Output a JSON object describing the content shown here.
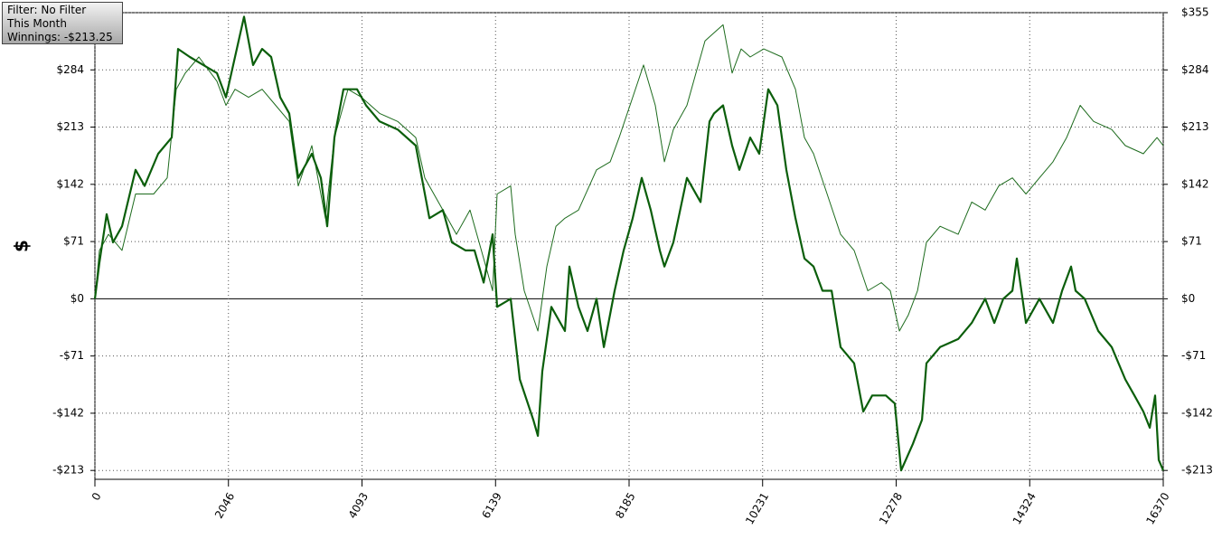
{
  "chart_data": {
    "type": "line",
    "ylabel": "$",
    "annotation_lines": [
      "Filter: No Filter",
      "This Month",
      "Winnings: -$213.25"
    ],
    "xlim": [
      0,
      16370
    ],
    "xticks": [
      0,
      2046,
      4093,
      6139,
      8185,
      10231,
      12278,
      14324,
      16370
    ],
    "ylim": [
      -224,
      355
    ],
    "yticks": [
      {
        "value": -213,
        "label": "-$213"
      },
      {
        "value": -142,
        "label": "-$142"
      },
      {
        "value": -71,
        "label": "-$71"
      },
      {
        "value": 0,
        "label": "$0"
      },
      {
        "value": 71,
        "label": "$71"
      },
      {
        "value": 142,
        "label": "$142"
      },
      {
        "value": 213,
        "label": "$213"
      },
      {
        "value": 284,
        "label": "$284"
      },
      {
        "value": 355,
        "label": "$355"
      }
    ],
    "grid": true,
    "series": [
      {
        "color": "#0b5e0b",
        "width": 2.2,
        "x": [
          0,
          69,
          180,
          277,
          416,
          623,
          762,
          970,
          1177,
          1274,
          1454,
          1662,
          1870,
          2008,
          2147,
          2285,
          2424,
          2562,
          2701,
          2839,
          2978,
          3116,
          3324,
          3463,
          3559,
          3670,
          3809,
          4017,
          4155,
          4363,
          4640,
          4917,
          5125,
          5332,
          5471,
          5679,
          5817,
          5956,
          6094,
          6163,
          6371,
          6510,
          6717,
          6787,
          6856,
          6994,
          7202,
          7271,
          7410,
          7548,
          7687,
          7798,
          7964,
          8102,
          8241,
          8379,
          8518,
          8656,
          8726,
          8864,
          9072,
          9280,
          9418,
          9487,
          9626,
          9764,
          9875,
          10041,
          10180,
          10318,
          10457,
          10595,
          10734,
          10872,
          11011,
          11149,
          11288,
          11426,
          11634,
          11773,
          11911,
          12119,
          12257,
          12354,
          12534,
          12673,
          12742,
          12950,
          13227,
          13435,
          13642,
          13781,
          13919,
          14058,
          14127,
          14266,
          14473,
          14681,
          14820,
          14958,
          15027,
          15166,
          15374,
          15581,
          15789,
          15928,
          16066,
          16163,
          16246,
          16301,
          16370
        ],
        "values": [
          0,
          45,
          105,
          70,
          90,
          160,
          140,
          180,
          200,
          310,
          300,
          290,
          280,
          250,
          300,
          350,
          290,
          310,
          300,
          250,
          230,
          150,
          180,
          150,
          90,
          200,
          260,
          260,
          240,
          220,
          210,
          190,
          100,
          110,
          70,
          60,
          60,
          20,
          80,
          -10,
          0,
          -100,
          -150,
          -170,
          -90,
          -10,
          -40,
          40,
          -10,
          -40,
          0,
          -60,
          10,
          60,
          100,
          150,
          110,
          60,
          40,
          70,
          150,
          120,
          220,
          230,
          240,
          190,
          160,
          200,
          180,
          260,
          240,
          160,
          100,
          50,
          40,
          10,
          10,
          -60,
          -80,
          -140,
          -120,
          -120,
          -130,
          -213,
          -180,
          -150,
          -80,
          -60,
          -50,
          -30,
          0,
          -30,
          0,
          10,
          50,
          -30,
          0,
          -30,
          10,
          40,
          10,
          0,
          -40,
          -60,
          -100,
          -120,
          -140,
          -160,
          -120,
          -200,
          -213
        ]
      },
      {
        "color": "#1d6b1d",
        "width": 1,
        "x": [
          0,
          69,
          208,
          416,
          623,
          900,
          1108,
          1247,
          1385,
          1593,
          1870,
          2008,
          2147,
          2355,
          2562,
          2770,
          2978,
          3116,
          3324,
          3532,
          3670,
          3878,
          4086,
          4363,
          4640,
          4917,
          5055,
          5332,
          5540,
          5748,
          5956,
          6094,
          6163,
          6371,
          6440,
          6579,
          6787,
          6925,
          7064,
          7202,
          7410,
          7687,
          7895,
          8033,
          8241,
          8407,
          8587,
          8726,
          8864,
          9072,
          9210,
          9349,
          9487,
          9626,
          9764,
          9903,
          10041,
          10249,
          10526,
          10734,
          10872,
          11011,
          11219,
          11426,
          11634,
          11842,
          12050,
          12188,
          12327,
          12465,
          12604,
          12742,
          12950,
          13227,
          13435,
          13642,
          13850,
          14058,
          14266,
          14473,
          14681,
          14889,
          15097,
          15304,
          15581,
          15789,
          16066,
          16274,
          16370
        ],
        "values": [
          0,
          60,
          80,
          60,
          130,
          130,
          150,
          260,
          280,
          300,
          270,
          240,
          260,
          250,
          260,
          240,
          220,
          140,
          190,
          100,
          200,
          260,
          250,
          230,
          220,
          200,
          150,
          110,
          80,
          110,
          50,
          10,
          130,
          140,
          80,
          10,
          -40,
          40,
          90,
          100,
          110,
          160,
          170,
          200,
          250,
          290,
          240,
          170,
          210,
          240,
          280,
          320,
          330,
          340,
          280,
          310,
          300,
          310,
          300,
          260,
          200,
          180,
          130,
          80,
          60,
          10,
          20,
          10,
          -40,
          -20,
          10,
          70,
          90,
          80,
          120,
          110,
          140,
          150,
          130,
          150,
          170,
          200,
          240,
          220,
          210,
          190,
          180,
          200,
          190
        ]
      }
    ]
  }
}
